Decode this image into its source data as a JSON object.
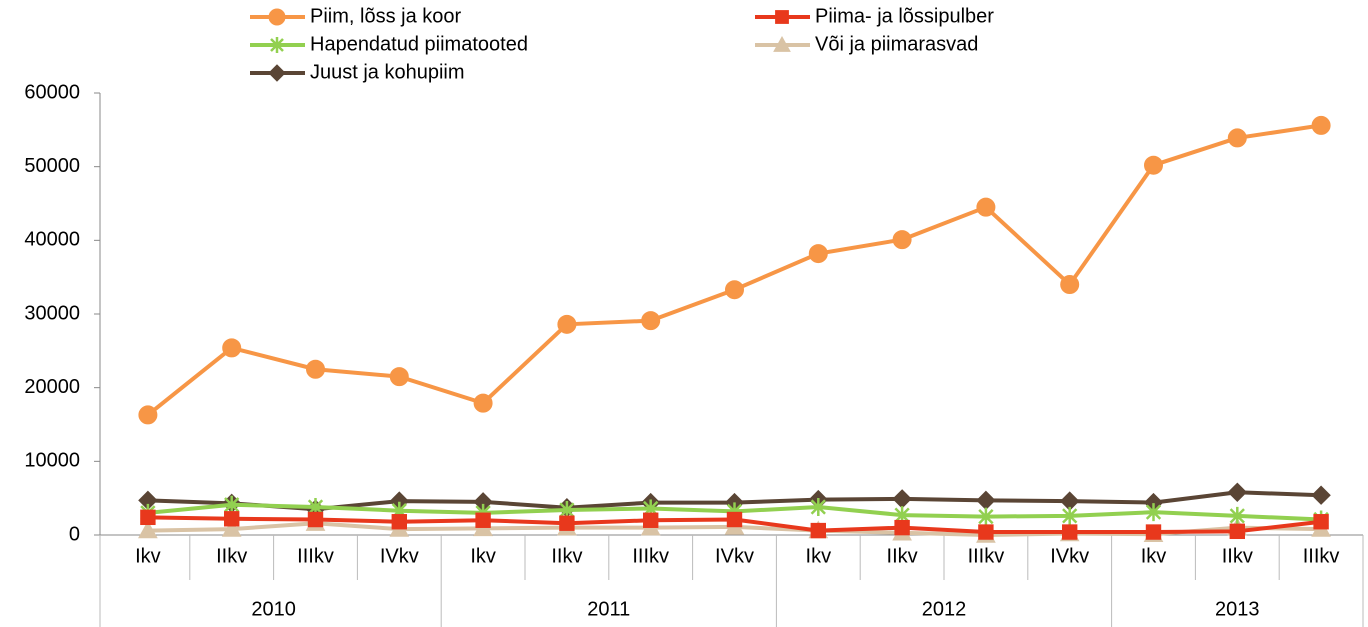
{
  "chart_data": {
    "type": "line",
    "groups": [
      {
        "name": "2010",
        "categories": [
          "Ikv",
          "IIkv",
          "IIIkv",
          "IVkv"
        ]
      },
      {
        "name": "2011",
        "categories": [
          "Ikv",
          "IIkv",
          "IIIkv",
          "IVkv"
        ]
      },
      {
        "name": "2012",
        "categories": [
          "Ikv",
          "IIkv",
          "IIIkv",
          "IVkv"
        ]
      },
      {
        "name": "2013",
        "categories": [
          "Ikv",
          "IIkv",
          "IIIkv"
        ]
      }
    ],
    "ylim": [
      0,
      60000
    ],
    "yticks": [
      0,
      10000,
      20000,
      30000,
      40000,
      50000,
      60000
    ],
    "grid": false,
    "legend": "top",
    "series": [
      {
        "name": "Piim, lõss ja koor",
        "color": "#f79646",
        "marker": "circle",
        "values": [
          16300,
          25400,
          22500,
          21500,
          17900,
          28600,
          29100,
          33300,
          38200,
          40100,
          44500,
          34000,
          50200,
          53900,
          55600
        ]
      },
      {
        "name": "Piima- ja lõssipulber",
        "color": "#e8381c",
        "marker": "square",
        "values": [
          2400,
          2200,
          2100,
          1800,
          2000,
          1600,
          2000,
          2100,
          600,
          1000,
          400,
          400,
          400,
          500,
          1800
        ]
      },
      {
        "name": "Hapendatud piimatooted",
        "color": "#92d050",
        "marker": "asterisk",
        "values": [
          3000,
          4100,
          3800,
          3300,
          3000,
          3400,
          3600,
          3200,
          3800,
          2700,
          2500,
          2600,
          3100,
          2600,
          2100
        ]
      },
      {
        "name": "Või ja piimarasvad",
        "color": "#d9c3a5",
        "marker": "triangle",
        "values": [
          600,
          800,
          1600,
          800,
          900,
          1000,
          1000,
          1100,
          600,
          300,
          0,
          200,
          100,
          1000,
          800
        ]
      },
      {
        "name": "Juust ja kohupiim",
        "color": "#5a4535",
        "marker": "diamond",
        "values": [
          4700,
          4300,
          3500,
          4600,
          4500,
          3700,
          4400,
          4400,
          4800,
          4900,
          4700,
          4600,
          4400,
          5800,
          5400
        ]
      }
    ]
  }
}
